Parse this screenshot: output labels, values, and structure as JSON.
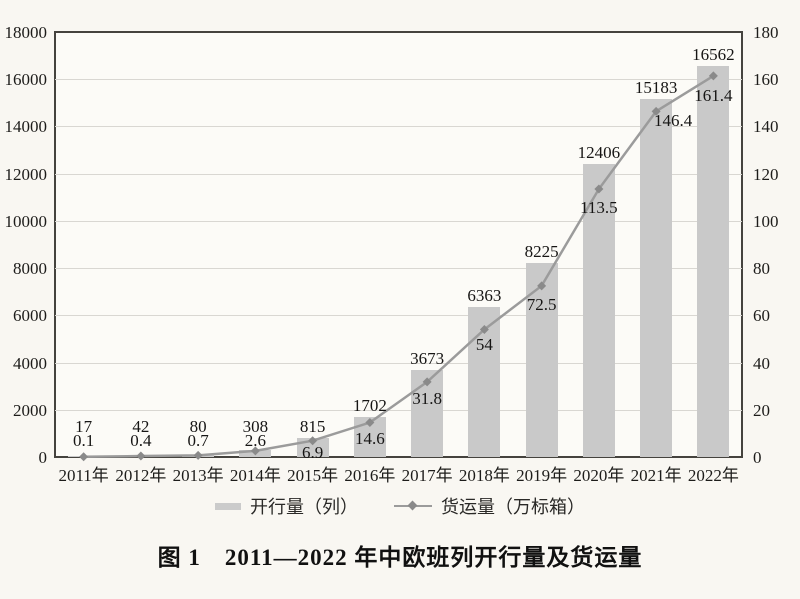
{
  "figure": {
    "caption": "图 1　2011—2022 年中欧班列开行量及货运量"
  },
  "chart_data": {
    "type": "bar",
    "subtype": "bar+line combo, dual axis",
    "categories": [
      "2011年",
      "2012年",
      "2013年",
      "2014年",
      "2015年",
      "2016年",
      "2017年",
      "2018年",
      "2019年",
      "2020年",
      "2021年",
      "2022年"
    ],
    "series": [
      {
        "name": "开行量（列）",
        "type": "bar",
        "axis": "left",
        "color": "#c9c9c9",
        "values": [
          17,
          42,
          80,
          308,
          815,
          1702,
          3673,
          6363,
          8225,
          12406,
          15183,
          16562
        ]
      },
      {
        "name": "货运量（万标箱）",
        "type": "line",
        "axis": "right",
        "color": "#9b9b9b",
        "marker": "diamond",
        "marker_color": "#8a8a8a",
        "values": [
          0.1,
          0.4,
          0.7,
          2.6,
          6.9,
          14.6,
          31.8,
          54,
          72.5,
          113.5,
          146.4,
          161.4
        ]
      }
    ],
    "left_axis": {
      "min": 0,
      "max": 18000,
      "step": 2000
    },
    "right_axis": {
      "min": 0,
      "max": 180,
      "step": 20
    },
    "grid": true,
    "legend_position": "bottom",
    "data_labels": true,
    "title": "图 1　2011—2022 年中欧班列开行量及货运量"
  }
}
